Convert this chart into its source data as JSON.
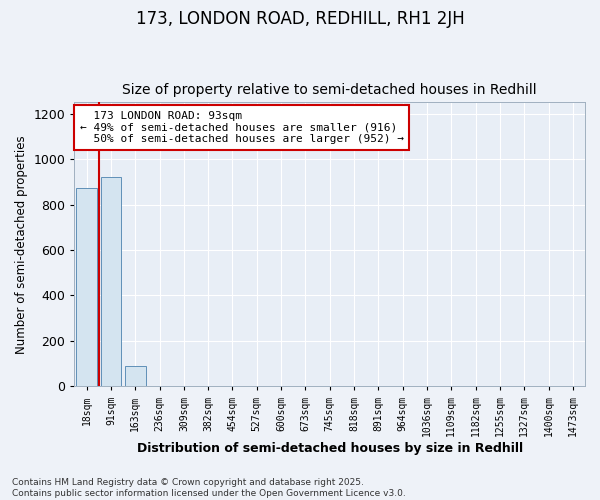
{
  "title": "173, LONDON ROAD, REDHILL, RH1 2JH",
  "subtitle": "Size of property relative to semi-detached houses in Redhill",
  "xlabel": "Distribution of semi-detached houses by size in Redhill",
  "ylabel": "Number of semi-detached properties",
  "bin_labels": [
    "18sqm",
    "91sqm",
    "163sqm",
    "236sqm",
    "309sqm",
    "382sqm",
    "454sqm",
    "527sqm",
    "600sqm",
    "673sqm",
    "745sqm",
    "818sqm",
    "891sqm",
    "964sqm",
    "1036sqm",
    "1109sqm",
    "1182sqm",
    "1255sqm",
    "1327sqm",
    "1400sqm",
    "1473sqm"
  ],
  "bar_values": [
    875,
    920,
    90,
    3,
    0,
    0,
    0,
    0,
    0,
    0,
    0,
    0,
    0,
    0,
    0,
    0,
    0,
    0,
    0,
    0,
    0
  ],
  "bar_color": "#d4e4f0",
  "bar_edge_color": "#6090b8",
  "property_label": "173 LONDON ROAD: 93sqm",
  "pct_smaller": 49,
  "count_smaller": 916,
  "pct_larger": 50,
  "count_larger": 952,
  "vline_color": "#cc0000",
  "annotation_box_color": "#cc0000",
  "ylim": [
    0,
    1250
  ],
  "yticks": [
    0,
    200,
    400,
    600,
    800,
    1000,
    1200
  ],
  "footer_text": "Contains HM Land Registry data © Crown copyright and database right 2025.\nContains public sector information licensed under the Open Government Licence v3.0.",
  "background_color": "#eef2f8",
  "plot_bg_color": "#e8eef6",
  "grid_color": "#ffffff",
  "title_fontsize": 12,
  "subtitle_fontsize": 10,
  "annotation_fontsize": 8,
  "footer_fontsize": 6.5
}
